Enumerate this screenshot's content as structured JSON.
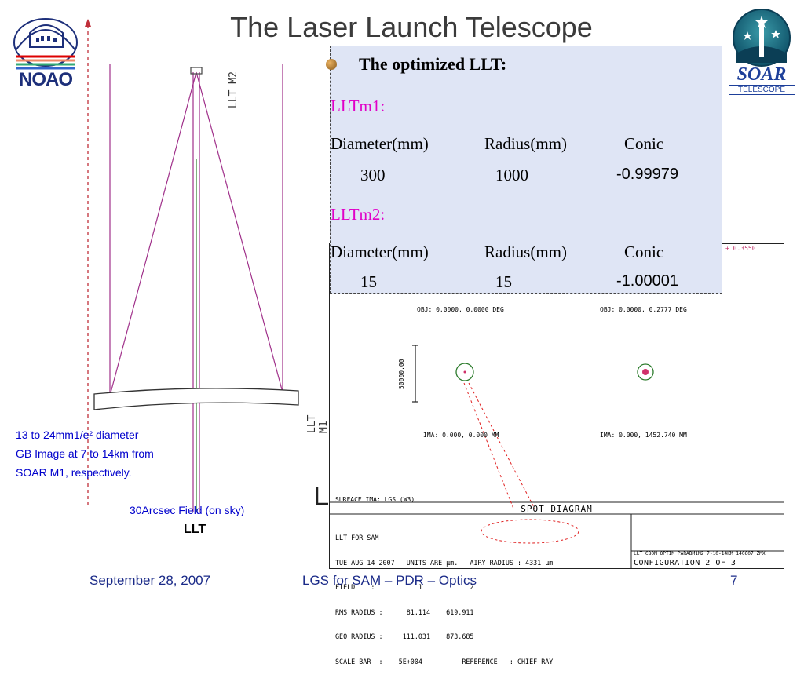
{
  "slide": {
    "title": "The Laser Launch Telescope",
    "page_number": "7"
  },
  "logos": {
    "left": {
      "text": "NOAO",
      "icon": "noao-logo-icon"
    },
    "right": {
      "text": "SOAR",
      "subtext": "TELESCOPE",
      "icon": "soar-logo-icon"
    }
  },
  "diagram": {
    "label_m2": "LLT M2",
    "label_m1": "LLT M1",
    "caption_lines": [
      "13 to 24mm1/e² diameter",
      "GB Image at 7 to 14km from",
      "SOAR M1, respectively."
    ],
    "field_label": "30Arcsec Field (on sky)",
    "llt_label": "LLT"
  },
  "textbox": {
    "heading": "The optimized LLT:",
    "m1_label": "LLTm1:",
    "m2_label": "LLTm2:",
    "col_headers": [
      "Diameter(mm)",
      "Radius(mm)",
      "Conic"
    ],
    "m1_values": [
      "300",
      "1000",
      "-0.99979"
    ],
    "m2_values": [
      "15",
      "15",
      "-1.00001"
    ]
  },
  "spot_diagram": {
    "top_value": "+ 0.3550",
    "obj_left": "OBJ: 0.0000, 0.0000 DEG",
    "obj_right": "OBJ: 0.0000, 0.2777 DEG",
    "scale_label": "50000.00",
    "ima_left": "IMA: 0.000, 0.000 MM",
    "ima_right": "IMA: 0.000, 1452.740 MM",
    "surface": "SURFACE IMA: LGS (W3)",
    "title": "SPOT DIAGRAM",
    "info_lines": [
      "LLT FOR SAM",
      "TUE AUG 14 2007   UNITS ARE µm.   AIRY RADIUS : 4331 µm",
      "FIELD    :           1            2",
      "RMS RADIUS :      81.114    619.911",
      "GEO RADIUS :     111.031    873.685",
      "SCALE BAR  :    5E+004          REFERENCE   : CHIEF RAY"
    ],
    "file_name": "LLT_C80M_OPTIM_PARABM1M2_7-10-14KM_140607.ZMX",
    "configuration": "CONFIGURATION 2 OF 3"
  },
  "footer": {
    "date": "September 28, 2007",
    "center": "LGS for SAM – PDR – Optics"
  },
  "colors": {
    "title": "#3b3b3b",
    "magenta": "#e000c8",
    "box_bg": "#dfe5f5",
    "footer": "#1a2a88",
    "caption": "#0000cc"
  }
}
